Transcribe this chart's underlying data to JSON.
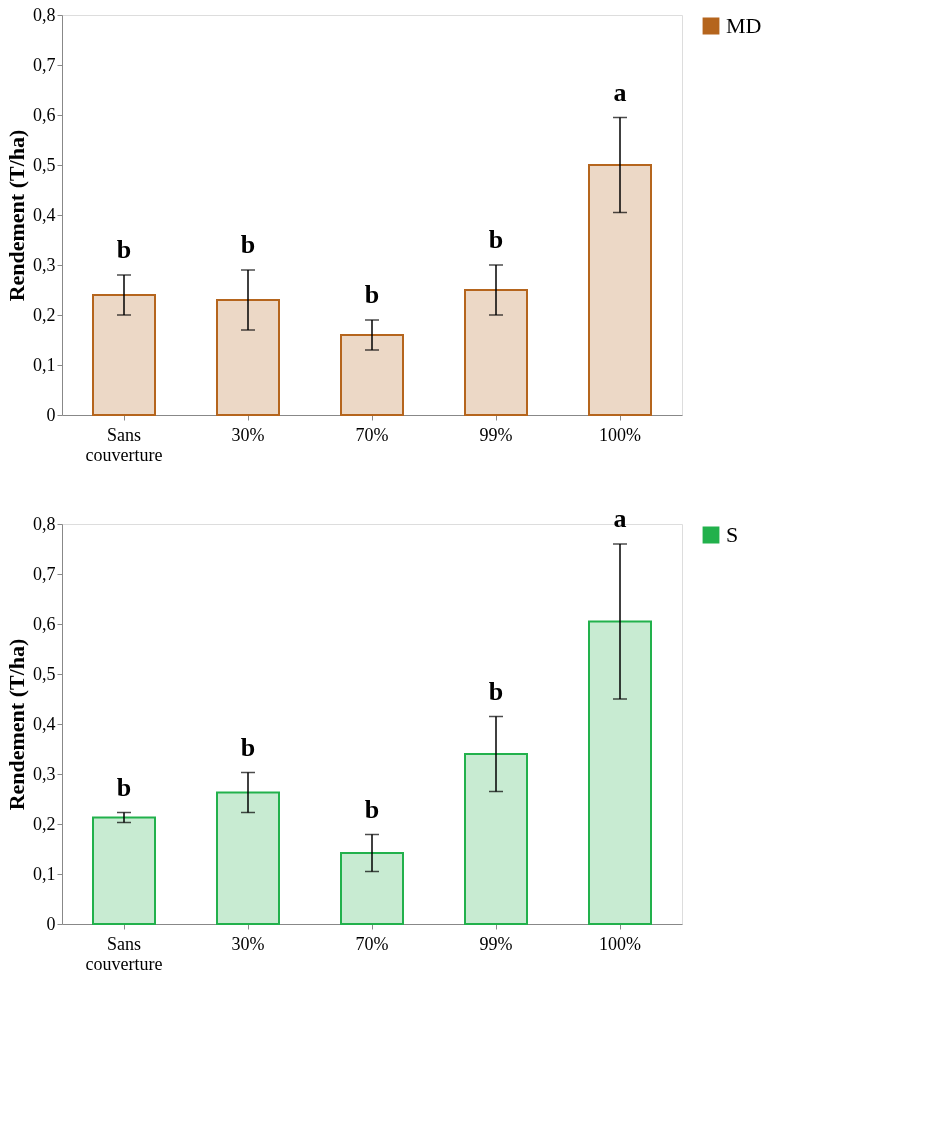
{
  "chart_data": [
    {
      "type": "bar",
      "ylabel": "Rendement (T/ha)",
      "categories": [
        "Sans couverture",
        "30%",
        "70%",
        "99%",
        "100%"
      ],
      "series": [
        {
          "name": "MD",
          "color": "#b5651d",
          "values": [
            0.24,
            0.23,
            0.16,
            0.25,
            0.5
          ],
          "errors": [
            0.04,
            0.06,
            0.03,
            0.05,
            0.095
          ]
        }
      ],
      "ylim": [
        0,
        0.8
      ],
      "yticks": [
        0,
        {
          "value": 0.1,
          "label": "0,1"
        },
        {
          "value": 0.2,
          "label": "0,2"
        },
        {
          "value": 0.3,
          "label": "0,3"
        },
        {
          "value": 0.4,
          "label": "0,4"
        },
        {
          "value": 0.5,
          "label": "0,5"
        },
        {
          "value": 0.6,
          "label": "0,6"
        },
        {
          "value": 0.7,
          "label": "0,7"
        },
        {
          "value": 0.8,
          "label": "0,8"
        }
      ],
      "legend": "right",
      "annotations": [
        "b",
        "b",
        "b",
        "b",
        "a"
      ]
    },
    {
      "type": "bar",
      "ylabel": "Rendement (T/ha)",
      "categories": [
        "Sans couverture",
        "30%",
        "70%",
        "99%",
        "100%"
      ],
      "series": [
        {
          "name": "S",
          "color": "#22b14c",
          "values": [
            0.213,
            0.263,
            0.142,
            0.34,
            0.605
          ],
          "errors": [
            0.01,
            0.04,
            0.037,
            0.075,
            0.155
          ]
        }
      ],
      "ylim": [
        0,
        0.8
      ],
      "yticks": [
        0,
        {
          "value": 0.1,
          "label": "0,1"
        },
        {
          "value": 0.2,
          "label": "0,2"
        },
        {
          "value": 0.3,
          "label": "0,3"
        },
        {
          "value": 0.4,
          "label": "0,4"
        },
        {
          "value": 0.5,
          "label": "0,5"
        },
        {
          "value": 0.6,
          "label": "0,6"
        },
        {
          "value": 0.7,
          "label": "0,7"
        },
        {
          "value": 0.8,
          "label": "0,8"
        }
      ],
      "legend": "right",
      "annotations": [
        "b",
        "b",
        "b",
        "b",
        "a"
      ]
    }
  ]
}
